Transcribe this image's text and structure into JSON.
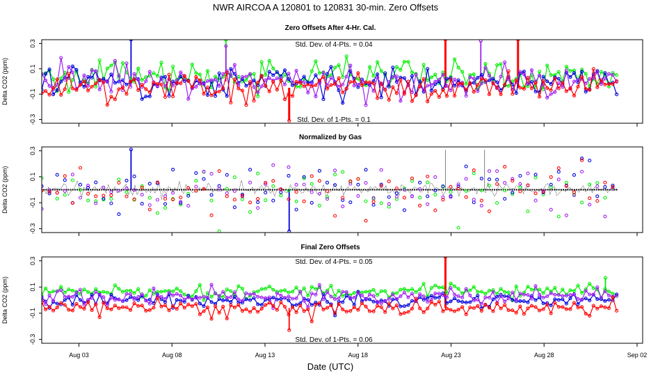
{
  "chart_data": {
    "type": "scatter",
    "title": "NWR   AIRCOA A   120801 to 120831   30-min. Zero Offsets",
    "xlabel": "Date (UTC)",
    "x_range_days": [
      0,
      32.3
    ],
    "x_tick_labels": [
      {
        "day": 2,
        "label": "Aug 03"
      },
      {
        "day": 7,
        "label": "Aug 08"
      },
      {
        "day": 12,
        "label": "Aug 13"
      },
      {
        "day": 17,
        "label": "Aug 18"
      },
      {
        "day": 22,
        "label": "Aug 23"
      },
      {
        "day": 27,
        "label": "Aug 28"
      },
      {
        "day": 32,
        "label": "Sep 02"
      }
    ],
    "data_range_days": [
      0.0,
      30.9
    ],
    "series_colors": {
      "red": "#ff0000",
      "green": "#00ee00",
      "blue": "#0000dd",
      "purple": "#a020f0",
      "black": "#000000"
    },
    "panels": [
      {
        "title": "Zero Offsets After 4-Hr. Cal.",
        "ylabel": "Delta CO2 (ppm)",
        "ylim": [
          -0.33,
          0.33
        ],
        "yticks": [
          "0.3",
          "0.1",
          "-0.1",
          "-0.3"
        ],
        "ytick_values": [
          0.3,
          0.1,
          -0.1,
          -0.3
        ],
        "std_top": "Std. Dev. of 4-Pts. =  0.04",
        "std_bottom": "Std. Dev. of 1-Pts. =  0.1",
        "series_offsets": {
          "green": 0.04,
          "blue": 0.0,
          "purple": 0.0,
          "red": -0.05
        },
        "noise": 0.055,
        "spikes": [
          {
            "series": "red",
            "day": 21.7,
            "value": 0.33
          },
          {
            "series": "red",
            "day": 25.6,
            "value": 0.33
          },
          {
            "series": "green",
            "day": 9.9,
            "value": 0.33
          },
          {
            "series": "blue",
            "day": 4.8,
            "value": 0.33
          },
          {
            "series": "purple",
            "day": 23.6,
            "value": 0.32
          },
          {
            "series": "red",
            "day": 13.3,
            "value": -0.31
          },
          {
            "series": "purple",
            "day": 9.9,
            "value": 0.28
          }
        ]
      },
      {
        "title": "Normalized by Gas",
        "ylabel": "Delta CO2 (ppm)",
        "ylim": [
          -0.33,
          0.33
        ],
        "yticks": [
          "0.3",
          "0.1",
          "-0.1",
          "-0.3"
        ],
        "ytick_values": [
          0.3,
          0.1,
          -0.1,
          -0.3
        ],
        "std_top": "",
        "std_bottom": "",
        "series_offsets": {
          "green": 0.0,
          "blue": 0.0,
          "purple": 0.0,
          "red": 0.0
        },
        "noise": 0.09,
        "spikes": [
          {
            "series": "black",
            "day": 21.7,
            "value": 0.31
          },
          {
            "series": "black",
            "day": 23.8,
            "value": 0.31
          },
          {
            "series": "blue",
            "day": 13.3,
            "value": -0.32
          },
          {
            "series": "blue",
            "day": 4.8,
            "value": 0.31
          }
        ]
      },
      {
        "title": "Final Zero Offsets",
        "ylabel": "Delta CO2 (ppm)",
        "ylim": [
          -0.33,
          0.33
        ],
        "yticks": [
          "0.3",
          "0.1",
          "-0.1",
          "-0.3"
        ],
        "ytick_values": [
          0.3,
          0.1,
          -0.1,
          -0.3
        ],
        "std_top": "Std. Dev. of 4-Pts. =  0.05",
        "std_bottom": "Std. Dev. of 1-Pts. =  0.06",
        "series_offsets": {
          "green": 0.07,
          "blue": 0.0,
          "purple": 0.03,
          "red": -0.06
        },
        "noise": 0.025,
        "spikes": [
          {
            "series": "red",
            "day": 21.7,
            "value": 0.33
          },
          {
            "series": "red",
            "day": 13.3,
            "value": -0.23
          },
          {
            "series": "green",
            "day": 30.3,
            "value": 0.17
          }
        ]
      }
    ]
  }
}
